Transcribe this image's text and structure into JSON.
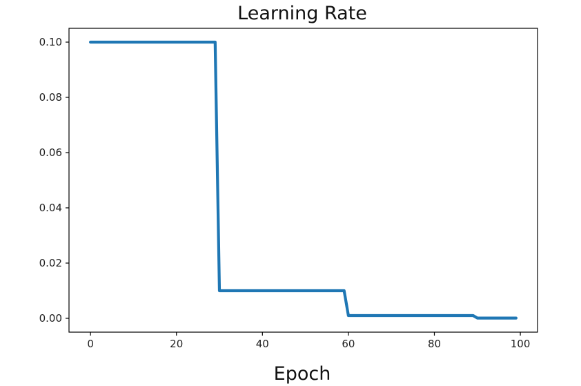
{
  "chart_data": {
    "type": "line",
    "title": "Learning Rate",
    "xlabel": "Epoch",
    "ylabel": "",
    "xlim": [
      -5,
      104
    ],
    "ylim": [
      -0.005,
      0.105
    ],
    "xticks": [
      0,
      20,
      40,
      60,
      80,
      100
    ],
    "xtick_labels": [
      "0",
      "20",
      "40",
      "60",
      "80",
      "100"
    ],
    "yticks": [
      0.0,
      0.02,
      0.04,
      0.06,
      0.08,
      0.1
    ],
    "ytick_labels": [
      "0.00",
      "0.02",
      "0.04",
      "0.06",
      "0.08",
      "0.10"
    ],
    "grid": false,
    "series": [
      {
        "color": "#1f77b4",
        "x": [
          0,
          29,
          30,
          59,
          60,
          89,
          90,
          99
        ],
        "y": [
          0.1,
          0.1,
          0.01,
          0.01,
          0.001,
          0.001,
          0.0001,
          0.0001
        ]
      }
    ]
  }
}
